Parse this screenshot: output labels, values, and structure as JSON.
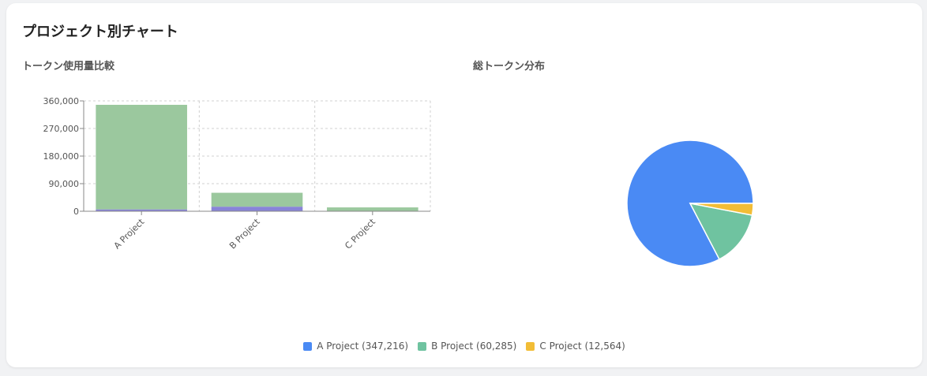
{
  "card": {
    "title": "プロジェクト別チャート"
  },
  "chart_data": [
    {
      "type": "bar",
      "stacked": true,
      "title": "トークン使用量比較",
      "categories": [
        "A Project",
        "B Project",
        "C Project"
      ],
      "series": [
        {
          "color": "#8884d8",
          "values": [
            6000,
            15000,
            1000
          ]
        },
        {
          "color": "#9bc89e",
          "values": [
            341216,
            45285,
            11564
          ]
        }
      ],
      "ylim": [
        0,
        360000
      ],
      "yticks": [
        0,
        90000,
        180000,
        270000,
        360000
      ],
      "ytick_labels": [
        "0",
        "90,000",
        "180,000",
        "270,000",
        "360,000"
      ],
      "grid": true
    },
    {
      "type": "pie",
      "title": "総トークン分布",
      "slices": [
        {
          "label": "A Project (347,216)",
          "value": 347216,
          "color": "#4a8af4"
        },
        {
          "label": "B Project (60,285)",
          "value": 60285,
          "color": "#6fc3a0"
        },
        {
          "label": "C Project (12,564)",
          "value": 12564,
          "color": "#f2bd36"
        }
      ],
      "legend_position": "bottom-center"
    }
  ]
}
